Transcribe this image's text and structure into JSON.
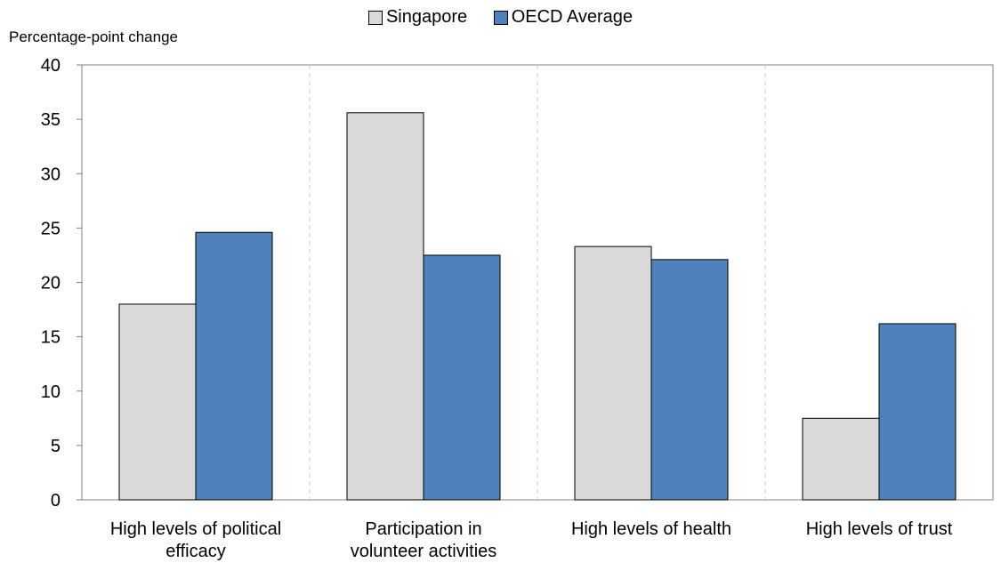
{
  "chart_data": {
    "type": "bar",
    "title": "",
    "xlabel": "",
    "ylabel": "Percentage-point change",
    "ylim": [
      0,
      40
    ],
    "yticks": [
      0,
      5,
      10,
      15,
      20,
      25,
      30,
      35,
      40
    ],
    "grid": false,
    "legend_position": "top-center",
    "categories": [
      [
        "High levels of political",
        "efficacy"
      ],
      [
        "Participation in",
        "volunteer activities"
      ],
      [
        "High levels of health"
      ],
      [
        "High levels of trust"
      ]
    ],
    "series": [
      {
        "name": "Singapore",
        "color": "#d9d9d9",
        "values": [
          18.0,
          35.6,
          23.3,
          7.5
        ]
      },
      {
        "name": "OECD Average",
        "color": "#4f81bd",
        "values": [
          24.6,
          22.5,
          22.1,
          16.2
        ]
      }
    ]
  }
}
